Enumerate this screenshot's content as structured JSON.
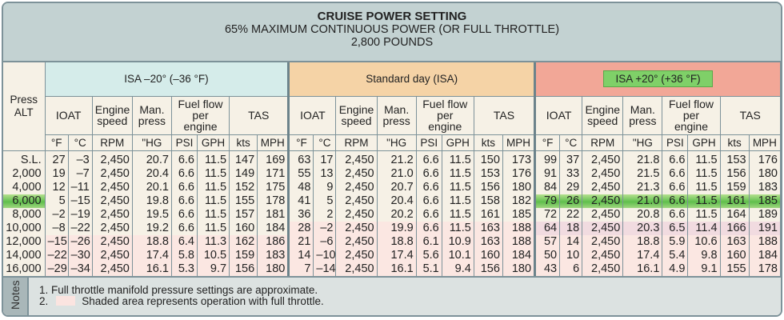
{
  "title": {
    "line1": "CRUISE POWER SETTING",
    "line2": "65% MAXIMUM CONTINUOUS POWER (OR FULL THROTTLE)",
    "line3": "2,800 POUNDS"
  },
  "colors": {
    "isa_minus": "#d5ecea",
    "standard": "#f5d3a6",
    "isa_plus": "#f2a797",
    "highlight": "#6cc655",
    "full_throttle_shade": "#fbe4e0"
  },
  "headers": {
    "press_alt": "Press ALT",
    "groups": [
      "ISA –20° (–36 °F)",
      "Standard day (ISA)",
      "ISA +20° (+36 °F)"
    ],
    "sub": [
      "IOAT",
      "Engine speed",
      "Man. press",
      "Fuel flow per engine",
      "TAS"
    ],
    "units": [
      "°F",
      "°C",
      "RPM",
      "\"HG",
      "PSI",
      "GPH",
      "kts",
      "MPH"
    ]
  },
  "altitudes": [
    "S.L.",
    "2,000",
    "4,000",
    "6,000",
    "8,000",
    "10,000",
    "12,000",
    "14,000",
    "16,000"
  ],
  "highlight_row": "6,000",
  "groups": [
    {
      "name": "ISA –20° (–36 °F)",
      "full_throttle_from": "12,000",
      "rows": [
        [
          "27",
          "–3",
          "2,450",
          "20.7",
          "6.6",
          "11.5",
          "147",
          "169"
        ],
        [
          "19",
          "–7",
          "2,450",
          "20.4",
          "6.6",
          "11.5",
          "149",
          "171"
        ],
        [
          "12",
          "–11",
          "2,450",
          "20.1",
          "6.6",
          "11.5",
          "152",
          "175"
        ],
        [
          "5",
          "–15",
          "2,450",
          "19.8",
          "6.6",
          "11.5",
          "155",
          "178"
        ],
        [
          "–2",
          "–19",
          "2,450",
          "19.5",
          "6.6",
          "11.5",
          "157",
          "181"
        ],
        [
          "–8",
          "–22",
          "2,450",
          "19.2",
          "6.6",
          "11.5",
          "160",
          "184"
        ],
        [
          "–15",
          "–26",
          "2,450",
          "18.8",
          "6.4",
          "11.3",
          "162",
          "186"
        ],
        [
          "–22",
          "–30",
          "2,450",
          "17.4",
          "5.8",
          "10.5",
          "159",
          "183"
        ],
        [
          "–29",
          "–34",
          "2,450",
          "16.1",
          "5.3",
          "9.7",
          "156",
          "180"
        ]
      ]
    },
    {
      "name": "Standard day (ISA)",
      "full_throttle_from": "12,000",
      "rows": [
        [
          "63",
          "17",
          "2,450",
          "21.2",
          "6.6",
          "11.5",
          "150",
          "173"
        ],
        [
          "55",
          "13",
          "2,450",
          "21.0",
          "6.6",
          "11.5",
          "153",
          "176"
        ],
        [
          "48",
          "9",
          "2,450",
          "20.7",
          "6.6",
          "11.5",
          "156",
          "180"
        ],
        [
          "41",
          "5",
          "2,450",
          "20.4",
          "6.6",
          "11.5",
          "158",
          "182"
        ],
        [
          "36",
          "2",
          "2,450",
          "20.2",
          "6.6",
          "11.5",
          "161",
          "185"
        ],
        [
          "28",
          "–2",
          "2,450",
          "19.9",
          "6.6",
          "11.5",
          "163",
          "188"
        ],
        [
          "21",
          "–6",
          "2,450",
          "18.8",
          "6.1",
          "10.9",
          "163",
          "188"
        ],
        [
          "14",
          "–10",
          "2,450",
          "17.4",
          "5.6",
          "10.1",
          "160",
          "184"
        ],
        [
          "7",
          "–14",
          "2,450",
          "16.1",
          "5.1",
          "9.4",
          "156",
          "180"
        ]
      ]
    },
    {
      "name": "ISA +20° (+36 °F)",
      "full_throttle_from": "12,000",
      "rows": [
        [
          "99",
          "37",
          "2,450",
          "21.8",
          "6.6",
          "11.5",
          "153",
          "176"
        ],
        [
          "91",
          "33",
          "2,450",
          "21.5",
          "6.6",
          "11.5",
          "156",
          "180"
        ],
        [
          "84",
          "29",
          "2,450",
          "21.3",
          "6.6",
          "11.5",
          "159",
          "183"
        ],
        [
          "79",
          "26",
          "2,450",
          "21.0",
          "6.6",
          "11.5",
          "161",
          "185"
        ],
        [
          "72",
          "22",
          "2,450",
          "20.8",
          "6.6",
          "11.5",
          "164",
          "189"
        ],
        [
          "64",
          "18",
          "2,450",
          "20.3",
          "6.5",
          "11.4",
          "166",
          "191"
        ],
        [
          "57",
          "14",
          "2,450",
          "18.8",
          "5.9",
          "10.6",
          "163",
          "188"
        ],
        [
          "50",
          "10",
          "2,450",
          "17.4",
          "5.4",
          "9.8",
          "160",
          "184"
        ],
        [
          "43",
          "6",
          "2,450",
          "16.1",
          "4.9",
          "9.1",
          "155",
          "178"
        ]
      ]
    }
  ],
  "notes": {
    "label": "Notes",
    "items": [
      "1.  Full throttle manifold pressure settings are approximate.",
      "2.",
      "Shaded area represents operation with full throttle."
    ]
  }
}
